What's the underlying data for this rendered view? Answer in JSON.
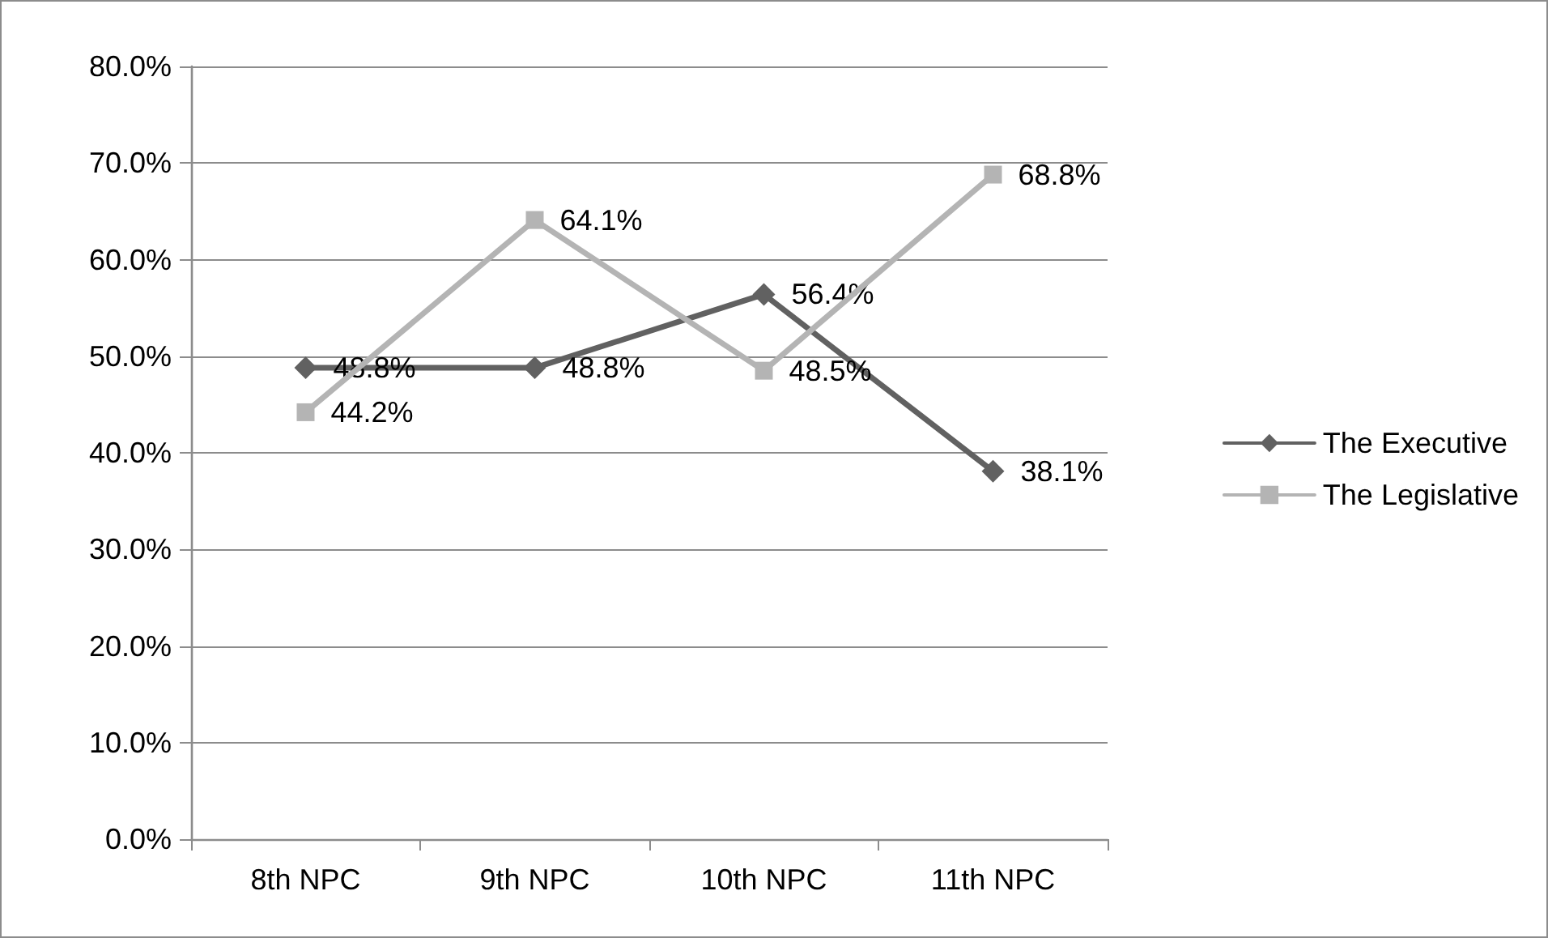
{
  "chart_data": {
    "type": "line",
    "categories": [
      "8th NPC",
      "9th NPC",
      "10th NPC",
      "11th NPC"
    ],
    "series": [
      {
        "name": "The Executive",
        "color": "#616161",
        "marker": "diamond",
        "values": [
          48.8,
          48.8,
          56.4,
          38.1
        ],
        "value_labels": [
          "48.8%",
          "48.8%",
          "56.4%",
          "38.1%"
        ]
      },
      {
        "name": "The Legislative",
        "color": "#b4b4b4",
        "marker": "square",
        "values": [
          44.2,
          64.1,
          48.5,
          68.8
        ],
        "value_labels": [
          "44.2%",
          "64.1%",
          "48.5%",
          "68.8%"
        ]
      }
    ],
    "ylim": [
      0,
      80
    ],
    "yticks": [
      {
        "value": 0,
        "label": "0.0%"
      },
      {
        "value": 10,
        "label": "10.0%"
      },
      {
        "value": 20,
        "label": "20.0%"
      },
      {
        "value": 30,
        "label": "30.0%"
      },
      {
        "value": 40,
        "label": "40.0%"
      },
      {
        "value": 50,
        "label": "50.0%"
      },
      {
        "value": 60,
        "label": "60.0%"
      },
      {
        "value": 70,
        "label": "70.0%"
      },
      {
        "value": 80,
        "label": "80.0%"
      }
    ],
    "grid": "y",
    "legend": "right"
  }
}
